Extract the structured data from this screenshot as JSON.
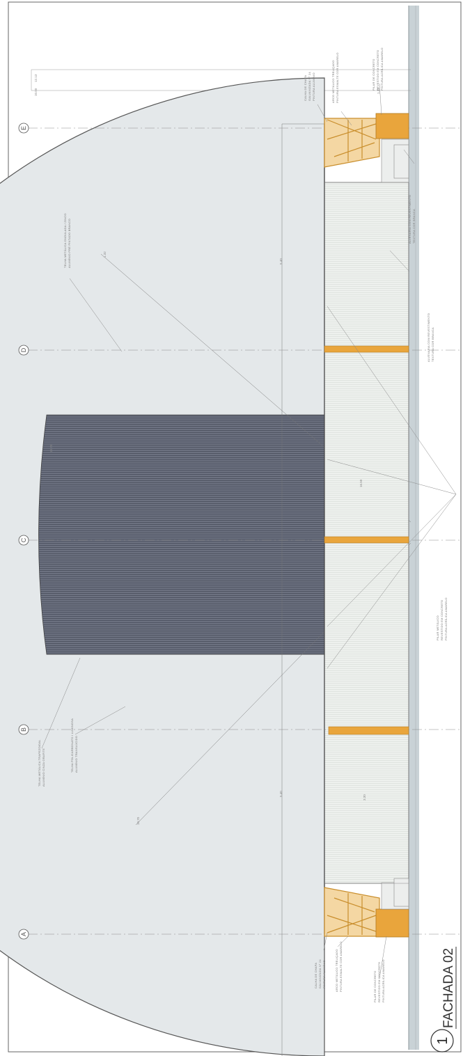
{
  "sheet": {
    "title": "FACHADA 02",
    "view_number": "1",
    "grid_axes": [
      "A",
      "B",
      "C",
      "D",
      "E"
    ],
    "dimensions": [
      "12.13",
      "10.50",
      "5.40",
      "5.40",
      "3.30",
      "1.32",
      "1.32",
      "10.70",
      "10.70",
      "16.50"
    ]
  },
  "colors": {
    "paper": "#ffffff",
    "roof": "#e4e8ea",
    "center_band": "#6c7180",
    "wall": "#eef1ee",
    "steel": "#e9a53c",
    "ground": "#c9d2d6",
    "line": "#5d6164"
  },
  "annotations": [
    {
      "id": "n1",
      "lines": [
        "TELHA METÁLICA ONDULADA / ZINCO",
        "ALUMÍNIO PRÉ PINTADO BRANCO"
      ]
    },
    {
      "id": "n2",
      "lines": [
        "TELHA METÁLICA TRAPEZOIDAL",
        "ALUMÍNIO CINZA GRAFITE"
      ]
    },
    {
      "id": "n3",
      "lines": [
        "TELHA POLICARBONATO / LUMINOSA",
        "ALUMÍNIO TRANSLÚCIDO"
      ]
    },
    {
      "id": "n4",
      "lines": [
        "CALHA DE CHAPA",
        "GALVANIZADA N° 24",
        "PINTURA ALUMÍNIO"
      ]
    },
    {
      "id": "n5",
      "lines": [
        "ARCO METÁLICO TRELIÇADO",
        "PINTURA ESMALTE COR AMARELO"
      ]
    },
    {
      "id": "n6",
      "lines": [
        "PILAR DE CONCRETO",
        "REVESTIDO EM CONCRETO",
        "PINTURA ACRÍLICA AMARELO"
      ]
    },
    {
      "id": "n7",
      "lines": [
        "ALVENARIA COM REVESTIMENTO",
        "TEXTURA COR BRANCA"
      ]
    },
    {
      "id": "n8",
      "lines": [
        "ALVENARIA COM REVESTIMENTO",
        "TEXTURA COR BRANCA"
      ]
    },
    {
      "id": "n9",
      "lines": [
        "PILAR METÁLICO",
        "REVESTIDO EM CONCRETO",
        "PINTURA ACRÍLICA AMARELO"
      ]
    },
    {
      "id": "n10",
      "lines": [
        "CALHA DE CHAPA",
        "GALVANIZADA N° 24",
        "PINTURA ALUMÍNIO"
      ]
    },
    {
      "id": "n11",
      "lines": [
        "ARCO METÁLICO TRELIÇADO",
        "PINTURA ESMALTE COR AMARELO"
      ]
    },
    {
      "id": "n12",
      "lines": [
        "PILAR DE CONCRETO",
        "REVESTIDO EM CONCRETO",
        "PINTURA ACRÍLICA AMARELO"
      ]
    }
  ]
}
